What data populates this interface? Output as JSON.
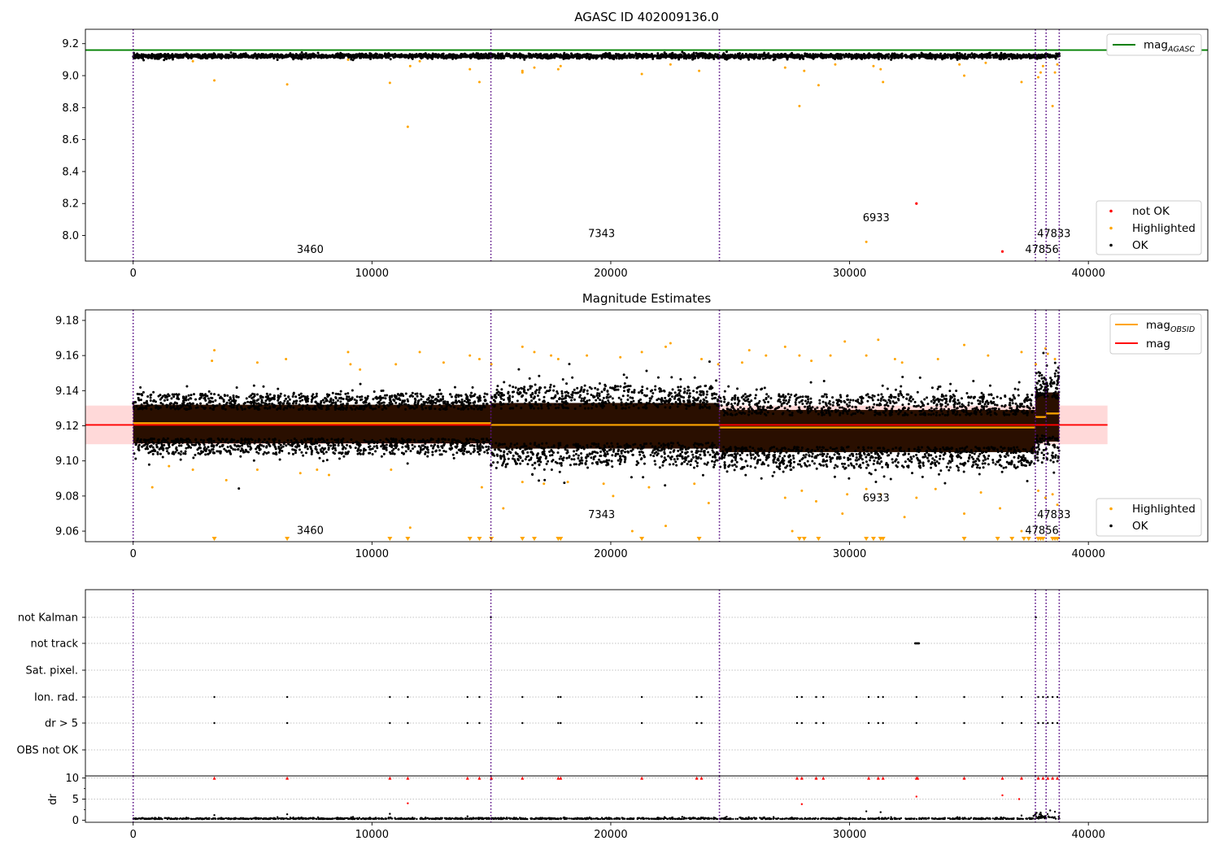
{
  "figure": {
    "background": "#ffffff"
  },
  "chart_data": [
    {
      "id": "top",
      "type": "scatter",
      "title": "AGASC ID 402009136.0",
      "xlim": [
        -2000,
        45000
      ],
      "ylim": [
        7.84,
        9.29
      ],
      "xticks": [
        0,
        10000,
        20000,
        30000,
        40000
      ],
      "yticks": [
        8.0,
        8.2,
        8.4,
        8.6,
        8.8,
        9.0,
        9.2
      ],
      "ytick_decimals": 1,
      "vlines": [
        0,
        14980,
        24550,
        37780,
        38230,
        38780
      ],
      "hlines": [
        {
          "name": "mag",
          "subscript": "AGASC",
          "y": 9.16,
          "x": [
            -2000,
            45000
          ],
          "color": "#008000"
        }
      ],
      "ok_band": {
        "center": 9.122,
        "spread": 0.012,
        "x": [
          0,
          38800
        ],
        "color": "#000000"
      },
      "highlighted": {
        "color": "#ffa500",
        "points": [
          [
            3400,
            8.97
          ],
          [
            6450,
            8.945
          ],
          [
            10750,
            8.955
          ],
          [
            11500,
            8.68
          ],
          [
            11600,
            9.06
          ],
          [
            14100,
            9.04
          ],
          [
            14500,
            8.96
          ],
          [
            16300,
            9.02
          ],
          [
            16300,
            9.03
          ],
          [
            16800,
            9.05
          ],
          [
            17800,
            9.04
          ],
          [
            17900,
            9.06
          ],
          [
            21300,
            9.01
          ],
          [
            22500,
            9.07
          ],
          [
            23700,
            9.03
          ],
          [
            27300,
            9.05
          ],
          [
            27900,
            8.81
          ],
          [
            28100,
            9.03
          ],
          [
            28700,
            8.94
          ],
          [
            29400,
            9.07
          ],
          [
            30700,
            7.96
          ],
          [
            31000,
            9.06
          ],
          [
            31300,
            9.04
          ],
          [
            31400,
            8.96
          ],
          [
            34600,
            9.07
          ],
          [
            34800,
            9.0
          ],
          [
            35700,
            9.08
          ],
          [
            37200,
            8.96
          ],
          [
            37900,
            8.99
          ],
          [
            38000,
            9.02
          ],
          [
            38100,
            9.06
          ],
          [
            38500,
            8.81
          ],
          [
            38600,
            9.02
          ],
          [
            38700,
            9.07
          ],
          [
            9000,
            9.1
          ],
          [
            12000,
            9.09
          ],
          [
            2500,
            9.09
          ]
        ]
      },
      "not_ok": {
        "color": "#ff0000",
        "points": [
          [
            32800,
            8.2
          ],
          [
            36400,
            7.9
          ]
        ]
      },
      "annotations": [
        {
          "text": "3460",
          "x": 6850,
          "y": 7.89
        },
        {
          "text": "7343",
          "x": 19050,
          "y": 7.99
        },
        {
          "text": "6933",
          "x": 30550,
          "y": 8.09
        },
        {
          "text": "47833",
          "x": 37850,
          "y": 7.99
        },
        {
          "text": "47856",
          "x": 37350,
          "y": 7.89
        }
      ],
      "legends": [
        {
          "position": "top-right",
          "items": [
            {
              "kind": "line",
              "color": "#008000",
              "label": "mag",
              "subscript": "AGASC"
            }
          ]
        },
        {
          "position": "bottom-right",
          "items": [
            {
              "kind": "dot",
              "color": "#ff0000",
              "label": "not OK"
            },
            {
              "kind": "dot",
              "color": "#ffa500",
              "label": "Highlighted"
            },
            {
              "kind": "dot",
              "color": "#000000",
              "label": "OK"
            }
          ]
        }
      ]
    },
    {
      "id": "middle",
      "type": "scatter",
      "title": "Magnitude Estimates",
      "xlim": [
        -2000,
        45000
      ],
      "ylim": [
        9.054,
        9.186
      ],
      "xticks": [
        0,
        10000,
        20000,
        30000,
        40000
      ],
      "yticks": [
        9.06,
        9.08,
        9.1,
        9.12,
        9.14,
        9.16,
        9.18
      ],
      "ytick_decimals": 2,
      "vlines": [
        0,
        14980,
        24550,
        37780,
        38230,
        38780
      ],
      "mag": {
        "name": "mag",
        "y": 9.1205,
        "x": [
          -2000,
          40800
        ],
        "color": "#ff0000",
        "band": [
          9.1095,
          9.1315
        ],
        "band_color": "#ffcccc"
      },
      "mag_obsid": {
        "name": "mag",
        "subscript": "OBSID",
        "color": "#ffa500",
        "segments": [
          {
            "x": [
              0,
              14980
            ],
            "y": 9.1215
          },
          {
            "x": [
              14980,
              24550
            ],
            "y": 9.1205
          },
          {
            "x": [
              24550,
              37780
            ],
            "y": 9.119
          },
          {
            "x": [
              37780,
              38230
            ],
            "y": 9.125
          },
          {
            "x": [
              38230,
              38780
            ],
            "y": 9.127
          }
        ]
      },
      "ok_segments": [
        {
          "x": [
            0,
            14980
          ],
          "center": 9.121,
          "core": 0.011,
          "spread": 0.009
        },
        {
          "x": [
            14980,
            24550
          ],
          "center": 9.12,
          "core": 0.013,
          "spread": 0.013
        },
        {
          "x": [
            24550,
            37780
          ],
          "center": 9.117,
          "core": 0.012,
          "spread": 0.012
        },
        {
          "x": [
            37780,
            38780
          ],
          "center": 9.125,
          "core": 0.014,
          "spread": 0.015
        }
      ],
      "highlighted": {
        "color": "#ffa500",
        "points": [
          [
            3400,
            9.163
          ],
          [
            3300,
            9.157
          ],
          [
            5200,
            9.156
          ],
          [
            6400,
            9.158
          ],
          [
            9000,
            9.162
          ],
          [
            9100,
            9.155
          ],
          [
            9500,
            9.152
          ],
          [
            11000,
            9.155
          ],
          [
            12000,
            9.162
          ],
          [
            13000,
            9.156
          ],
          [
            14100,
            9.16
          ],
          [
            14500,
            9.158
          ],
          [
            15000,
            9.155
          ],
          [
            16300,
            9.165
          ],
          [
            16800,
            9.162
          ],
          [
            17500,
            9.16
          ],
          [
            17800,
            9.158
          ],
          [
            19000,
            9.16
          ],
          [
            20400,
            9.159
          ],
          [
            21300,
            9.162
          ],
          [
            22300,
            9.165
          ],
          [
            22500,
            9.167
          ],
          [
            23800,
            9.158
          ],
          [
            24500,
            9.155
          ],
          [
            25500,
            9.156
          ],
          [
            25800,
            9.163
          ],
          [
            26500,
            9.16
          ],
          [
            27300,
            9.165
          ],
          [
            27900,
            9.16
          ],
          [
            28400,
            9.157
          ],
          [
            29200,
            9.16
          ],
          [
            29800,
            9.168
          ],
          [
            30700,
            9.16
          ],
          [
            31200,
            9.169
          ],
          [
            31900,
            9.158
          ],
          [
            32200,
            9.156
          ],
          [
            33700,
            9.158
          ],
          [
            34800,
            9.166
          ],
          [
            35800,
            9.16
          ],
          [
            37200,
            9.162
          ],
          [
            37800,
            9.155
          ],
          [
            38200,
            9.164
          ],
          [
            38300,
            9.161
          ],
          [
            38600,
            9.158
          ],
          [
            800,
            9.085
          ],
          [
            1500,
            9.097
          ],
          [
            2500,
            9.095
          ],
          [
            3900,
            9.089
          ],
          [
            5200,
            9.095
          ],
          [
            7000,
            9.093
          ],
          [
            7700,
            9.095
          ],
          [
            8200,
            9.092
          ],
          [
            10800,
            9.095
          ],
          [
            11600,
            9.062
          ],
          [
            14600,
            9.085
          ],
          [
            15500,
            9.073
          ],
          [
            16300,
            9.088
          ],
          [
            17200,
            9.087
          ],
          [
            18200,
            9.088
          ],
          [
            19700,
            9.087
          ],
          [
            20100,
            9.08
          ],
          [
            20900,
            9.06
          ],
          [
            21600,
            9.085
          ],
          [
            22300,
            9.063
          ],
          [
            23500,
            9.087
          ],
          [
            24100,
            9.076
          ],
          [
            27300,
            9.079
          ],
          [
            27600,
            9.06
          ],
          [
            28000,
            9.083
          ],
          [
            28600,
            9.077
          ],
          [
            29700,
            9.07
          ],
          [
            29900,
            9.081
          ],
          [
            30700,
            9.084
          ],
          [
            31300,
            9.081
          ],
          [
            32300,
            9.068
          ],
          [
            32800,
            9.079
          ],
          [
            33600,
            9.084
          ],
          [
            34800,
            9.07
          ],
          [
            35500,
            9.082
          ],
          [
            36300,
            9.073
          ],
          [
            37200,
            9.06
          ],
          [
            37900,
            9.083
          ],
          [
            38200,
            9.079
          ],
          [
            38500,
            9.081
          ],
          [
            38700,
            9.075
          ]
        ]
      },
      "clipped": {
        "color": "#ffa500",
        "x": [
          3400,
          6450,
          10750,
          11500,
          14100,
          14500,
          15000,
          16300,
          16800,
          17800,
          17900,
          21300,
          23700,
          27900,
          28100,
          28700,
          30700,
          31000,
          31300,
          31400,
          34800,
          36200,
          36800,
          37300,
          37500,
          37900,
          38000,
          38100,
          38500,
          38600,
          38700
        ]
      },
      "annotations": [
        {
          "text": "3460",
          "x": 6850,
          "y": 9.0585
        },
        {
          "text": "7343",
          "x": 19050,
          "y": 9.0675
        },
        {
          "text": "6933",
          "x": 30550,
          "y": 9.077
        },
        {
          "text": "47833",
          "x": 37850,
          "y": 9.0675
        },
        {
          "text": "47856",
          "x": 37350,
          "y": 9.0585
        }
      ],
      "legends": [
        {
          "position": "top-right",
          "items": [
            {
              "kind": "line",
              "color": "#ffa500",
              "label": "mag",
              "subscript": "OBSID"
            },
            {
              "kind": "line",
              "color": "#ff0000",
              "label": "mag",
              "subscript": ""
            }
          ]
        },
        {
          "position": "bottom-right",
          "items": [
            {
              "kind": "dot",
              "color": "#ffa500",
              "label": "Highlighted"
            },
            {
              "kind": "dot",
              "color": "#000000",
              "label": "OK"
            }
          ]
        }
      ]
    },
    {
      "id": "flags",
      "type": "scatter",
      "xlim": [
        -2000,
        45000
      ],
      "categories": [
        "not Kalman",
        "not track",
        "Sat. pixel.",
        "Ion. rad.",
        "dr > 5",
        "OBS not OK"
      ],
      "vlines": [
        0,
        14980,
        24550,
        37780,
        38230,
        38780
      ],
      "grid": true,
      "flag_x": [
        3400,
        6450,
        10750,
        11500,
        14000,
        14500,
        16300,
        17800,
        17900,
        21300,
        23600,
        23800,
        27800,
        28000,
        28600,
        28900,
        30800,
        31200,
        31400,
        32800,
        34800,
        36400,
        37200,
        37900,
        38100,
        38300,
        38500,
        38700
      ],
      "not_kalman_x": [
        14980,
        37800
      ],
      "not_track_x": [
        32750,
        32800,
        32850,
        32900
      ],
      "color": "#000000"
    },
    {
      "id": "dr",
      "type": "scatter",
      "xlim": [
        -2000,
        45000
      ],
      "ylim": [
        -0.5,
        10.5
      ],
      "ylabel": "dr",
      "xticks": [
        0,
        10000,
        20000,
        30000,
        40000
      ],
      "yticks": [
        0,
        5,
        10
      ],
      "ytick_decimals": 0,
      "vlines": [
        0,
        14980,
        24550,
        37780,
        38230,
        38780
      ],
      "red_at_10_x": [
        3400,
        6450,
        10750,
        11500,
        14000,
        14500,
        15000,
        16300,
        17800,
        17900,
        21300,
        23600,
        23800,
        27800,
        28000,
        28600,
        28900,
        30800,
        31200,
        31400,
        32800,
        32850,
        34800,
        36400,
        37200,
        37900,
        38100,
        38300,
        38500,
        38700
      ],
      "red_points": [
        [
          11500,
          4.0
        ],
        [
          28000,
          3.8
        ],
        [
          32800,
          5.6
        ],
        [
          36400,
          5.9
        ],
        [
          37100,
          5.0
        ]
      ],
      "black_points": [
        [
          3400,
          1.2
        ],
        [
          6450,
          1.4
        ],
        [
          10750,
          1.5
        ],
        [
          14000,
          0.9
        ],
        [
          30700,
          2.1
        ],
        [
          31300,
          1.9
        ],
        [
          37200,
          1.1
        ],
        [
          38000,
          1.8
        ],
        [
          38400,
          2.3
        ],
        [
          38600,
          2.0
        ]
      ],
      "base_y": 0.25,
      "red_color": "#ff0000",
      "color": "#000000"
    }
  ]
}
